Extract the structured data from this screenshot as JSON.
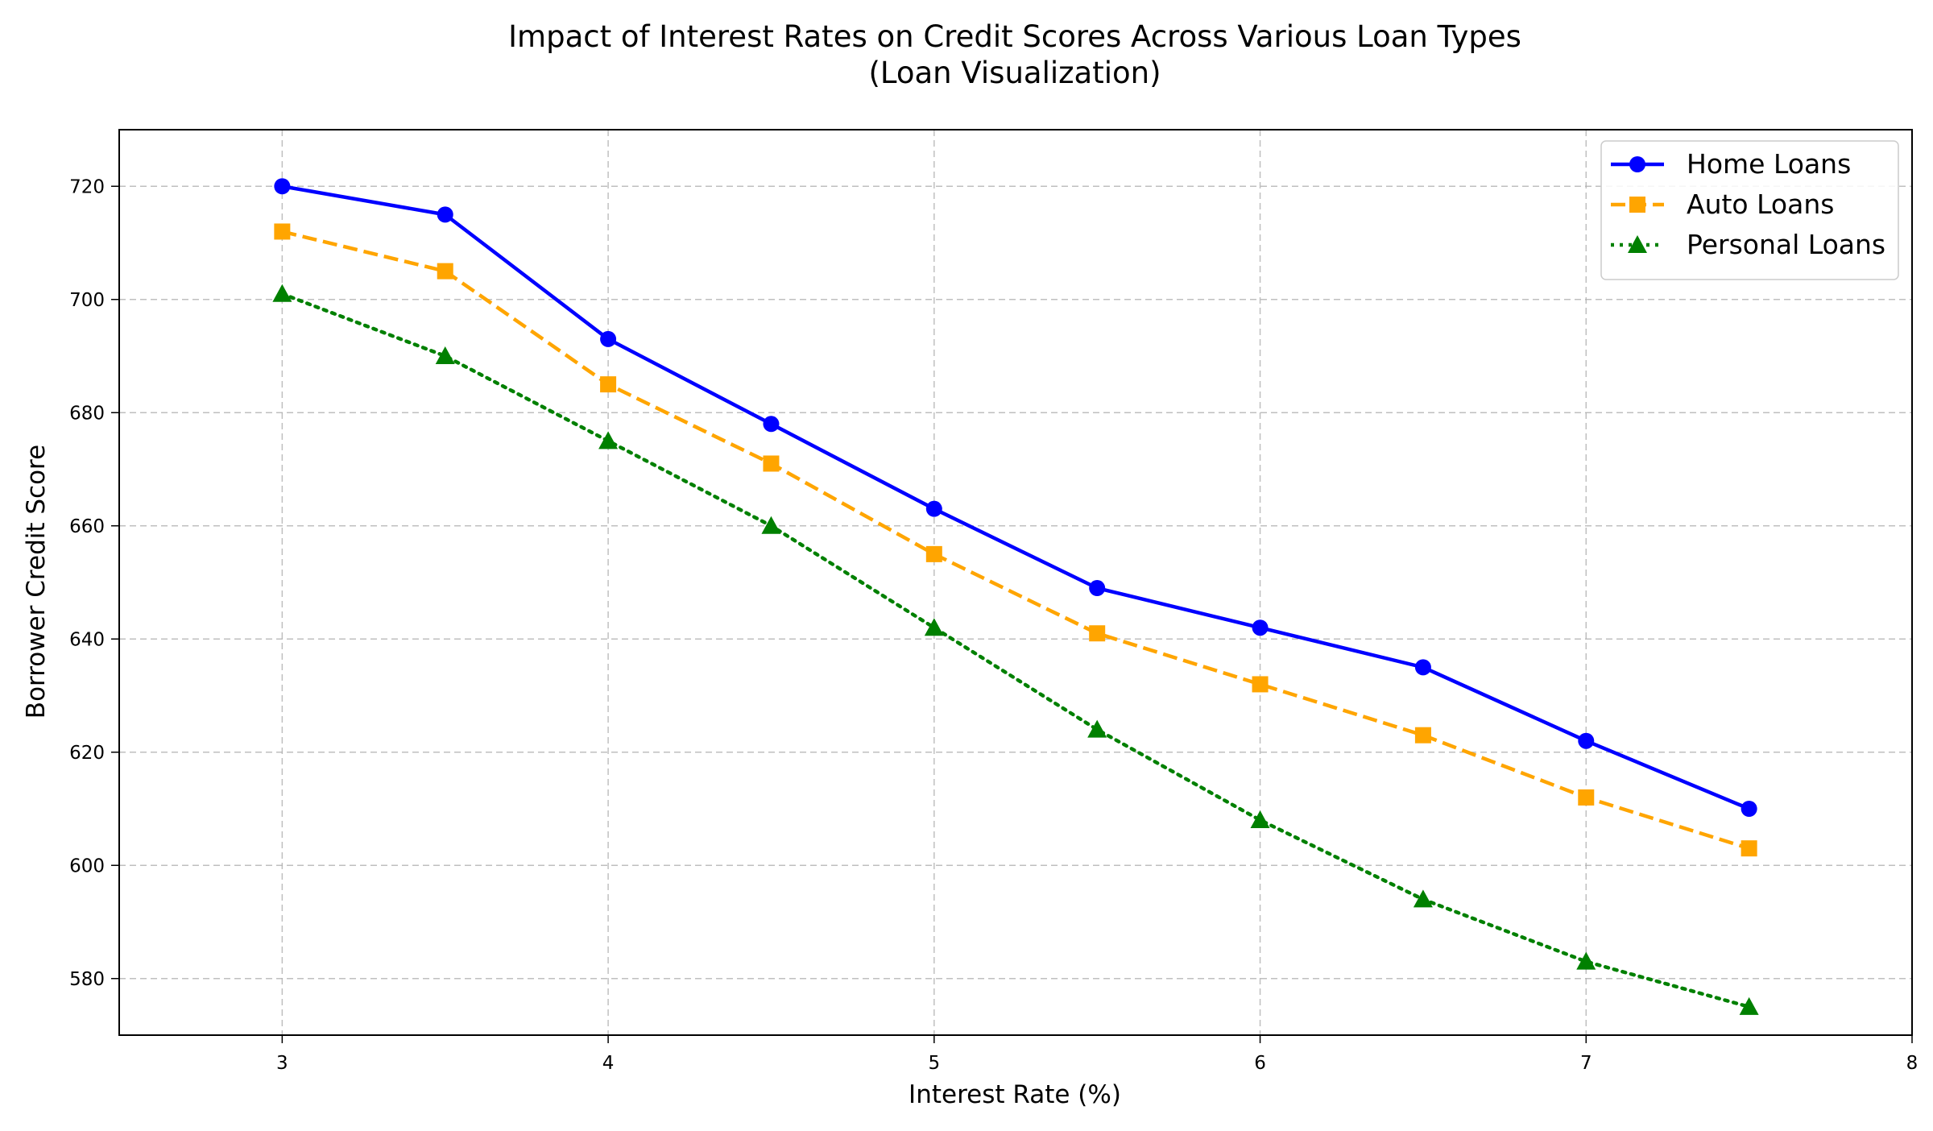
{
  "chart_data": {
    "type": "line",
    "title": "Impact of Interest Rates on Credit Scores Across Various Loan Types",
    "subtitle": "(Loan Visualization)",
    "xlabel": "Interest Rate (%)",
    "ylabel": "Borrower Credit Score",
    "xlim": [
      2.5,
      8
    ],
    "ylim": [
      570,
      730
    ],
    "x_ticks": [
      3,
      4,
      5,
      6,
      7,
      8
    ],
    "y_ticks": [
      580,
      600,
      620,
      640,
      660,
      680,
      700,
      720
    ],
    "grid": true,
    "legend_position": "top-right",
    "x": [
      3,
      3.5,
      4,
      4.5,
      5,
      5.5,
      6,
      6.5,
      7,
      7.5
    ],
    "series": [
      {
        "name": "Home Loans",
        "values": [
          720,
          715,
          693,
          678,
          663,
          649,
          642,
          635,
          622,
          610
        ],
        "color": "#0000ff",
        "line_style": "solid",
        "marker": "circle"
      },
      {
        "name": "Auto Loans",
        "values": [
          712,
          705,
          685,
          671,
          655,
          641,
          632,
          623,
          612,
          603
        ],
        "color": "#ffa500",
        "line_style": "dashed",
        "marker": "square"
      },
      {
        "name": "Personal Loans",
        "values": [
          701,
          690,
          675,
          660,
          642,
          624,
          608,
          594,
          583,
          575
        ],
        "color": "#008000",
        "line_style": "dotted",
        "marker": "triangle"
      }
    ]
  }
}
